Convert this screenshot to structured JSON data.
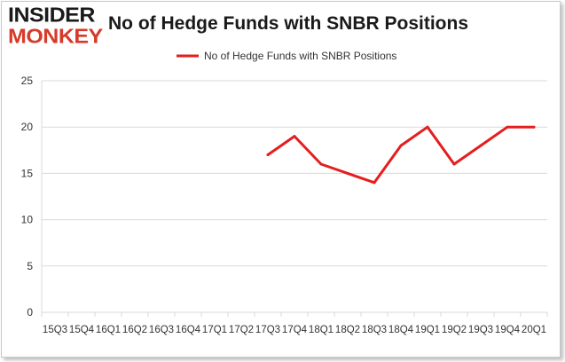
{
  "logo": {
    "top": "INSIDER",
    "bottom": "MONKEY"
  },
  "chart_data": {
    "type": "line",
    "title": "No of Hedge Funds with SNBR Positions",
    "categories": [
      "Q3 2015",
      "Q4 2015",
      "Q1 2016",
      "Q2 2016",
      "Q3 2016",
      "Q4 2016",
      "Q1 2017",
      "Q2 2017",
      "Q3 2017",
      "Q4 2017",
      "Q1 2018",
      "Q2 2018",
      "Q3 2018",
      "Q4 2018",
      "Q1 2019",
      "Q2 2019",
      "Q3 2019",
      "Q4 2019",
      "Q1 2020"
    ],
    "tick_labels_printed": [
      "15Q3",
      "15Q4",
      "16Q1",
      "16Q2",
      "16Q3",
      "16Q4",
      "17Q1",
      "17Q2",
      "17Q3",
      "17Q4",
      "18Q1",
      "18Q2",
      "18Q3",
      "18Q4",
      "19Q1",
      "19Q2",
      "19Q3",
      "19Q4",
      "20Q1"
    ],
    "series": [
      {
        "name": "No of Hedge Funds with SNBR Positions",
        "values": [
          null,
          null,
          null,
          null,
          null,
          null,
          null,
          null,
          17,
          19,
          16,
          15,
          14,
          18,
          20,
          16,
          18,
          20,
          20
        ],
        "color": "#e41e1e"
      }
    ],
    "ylim": [
      0,
      25
    ],
    "yticks": [
      0,
      5,
      10,
      15,
      20,
      25
    ],
    "grid": true,
    "legend_position": "top-center",
    "xlabel": "",
    "ylabel": ""
  }
}
